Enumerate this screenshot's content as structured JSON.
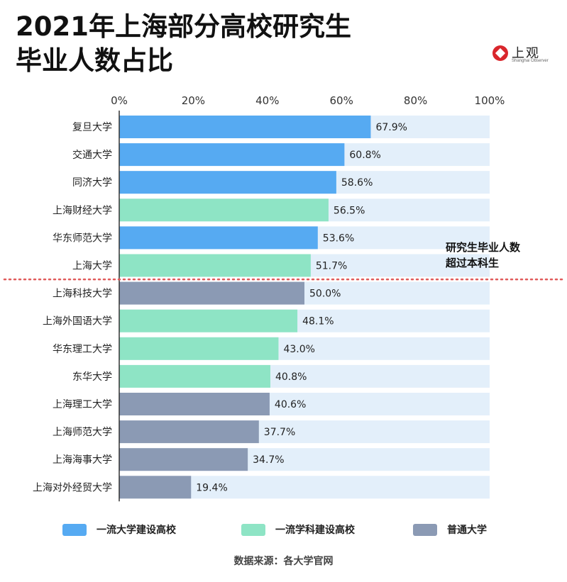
{
  "title_line1": "2021年上海部分高校研究生",
  "title_line2": "毕业人数占比",
  "logo_text": "上观",
  "logo_sub": "Shanghai Observer",
  "annotation_line1": "研究生毕业人数",
  "annotation_line2": "超过本科生",
  "source": "数据来源：各大学官网",
  "legend": [
    {
      "label": "一流大学建设高校",
      "color": "#56aaf2"
    },
    {
      "label": "一流学科建设高校",
      "color": "#8ee4c5"
    },
    {
      "label": "普通大学",
      "color": "#8b9ab4"
    }
  ],
  "colors": {
    "track": "#e3effa",
    "divider": "#e05a5a",
    "axis": "#333333"
  },
  "chart_data": {
    "type": "bar",
    "orientation": "horizontal",
    "title": "2021年上海部分高校研究生毕业人数占比",
    "xlim": [
      0,
      100
    ],
    "xticks": [
      "0%",
      "20%",
      "40%",
      "60%",
      "80%",
      "100%"
    ],
    "categories": [
      "复旦大学",
      "交通大学",
      "同济大学",
      "上海财经大学",
      "华东师范大学",
      "上海大学",
      "上海科技大学",
      "上海外国语大学",
      "华东理工大学",
      "东华大学",
      "上海理工大学",
      "上海师范大学",
      "上海海事大学",
      "上海对外经贸大学"
    ],
    "values": [
      67.9,
      60.8,
      58.6,
      56.5,
      53.6,
      51.7,
      50.0,
      48.1,
      43.0,
      40.8,
      40.6,
      37.7,
      34.7,
      19.4
    ],
    "value_labels": [
      "67.9%",
      "60.8%",
      "58.6%",
      "56.5%",
      "53.6%",
      "51.7%",
      "50.0%",
      "48.1%",
      "43.0%",
      "40.8%",
      "40.6%",
      "37.7%",
      "34.7%",
      "19.4%"
    ],
    "groups": [
      0,
      0,
      0,
      1,
      0,
      1,
      2,
      1,
      1,
      1,
      2,
      2,
      2,
      2
    ],
    "group_names": [
      "一流大学建设高校",
      "一流学科建设高校",
      "普通大学"
    ],
    "legend_position": "bottom",
    "grid": false
  }
}
